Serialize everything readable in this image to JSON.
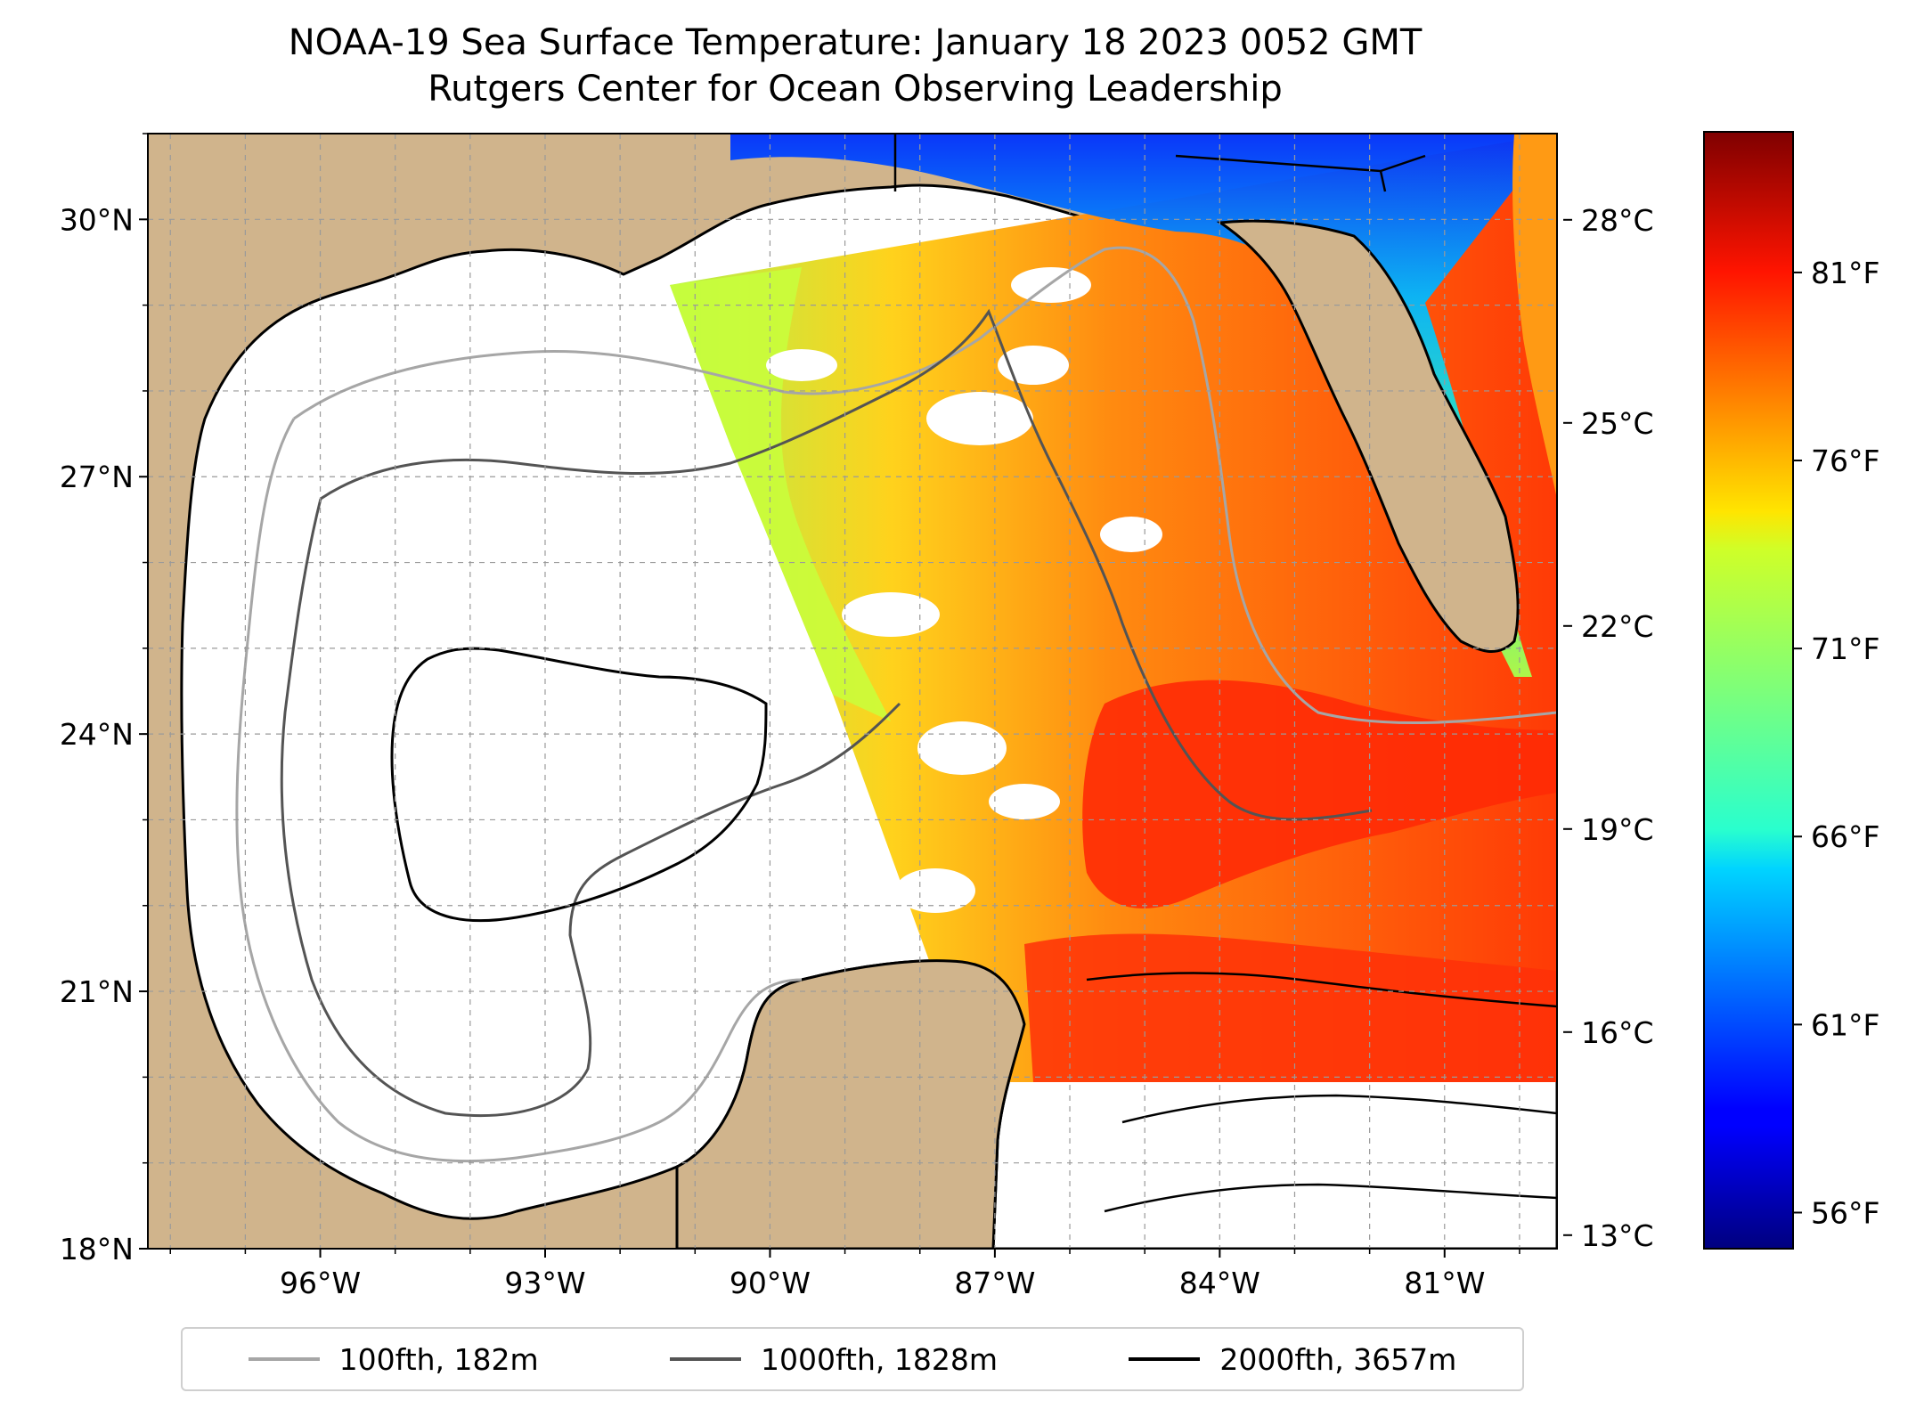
{
  "title": {
    "line1": "NOAA-19 Sea Surface Temperature: January 18 2023 0052 GMT",
    "line2": "Rutgers Center for Ocean Observing Leadership"
  },
  "map": {
    "extent": {
      "lon_min": -98.3,
      "lon_max": -79.5,
      "lat_min": 18.0,
      "lat_max": 31.0
    },
    "lat_ticks": [
      {
        "value": 30,
        "label": "30°N"
      },
      {
        "value": 27,
        "label": "27°N"
      },
      {
        "value": 24,
        "label": "24°N"
      },
      {
        "value": 21,
        "label": "21°N"
      },
      {
        "value": 18,
        "label": "18°N"
      }
    ],
    "lon_ticks": [
      {
        "value": -96,
        "label": "96°W"
      },
      {
        "value": -93,
        "label": "93°W"
      },
      {
        "value": -90,
        "label": "90°W"
      },
      {
        "value": -87,
        "label": "87°W"
      },
      {
        "value": -84,
        "label": "84°W"
      },
      {
        "value": -81,
        "label": "81°W"
      }
    ],
    "gridlines": true,
    "land_color": "#d0b48c",
    "no_data_color": "#ffffff"
  },
  "colorbar": {
    "colormap": "jet",
    "celsius_range": [
      12.8,
      29.3
    ],
    "celsius_ticks": [
      {
        "value": 28,
        "label": "28°C"
      },
      {
        "value": 25,
        "label": "25°C"
      },
      {
        "value": 22,
        "label": "22°C"
      },
      {
        "value": 19,
        "label": "19°C"
      },
      {
        "value": 16,
        "label": "16°C"
      },
      {
        "value": 13,
        "label": "13°C"
      }
    ],
    "fahrenheit_ticks": [
      {
        "value": 81,
        "label": "81°F"
      },
      {
        "value": 76,
        "label": "76°F"
      },
      {
        "value": 71,
        "label": "71°F"
      },
      {
        "value": 66,
        "label": "66°F"
      },
      {
        "value": 61,
        "label": "61°F"
      },
      {
        "value": 56,
        "label": "56°F"
      }
    ]
  },
  "legend": {
    "placement": "bottom",
    "items": [
      {
        "label": "100fth, 182m",
        "color": "#a6a6a6"
      },
      {
        "label": "1000fth, 1828m",
        "color": "#545454"
      },
      {
        "label": "2000fth, 3657m",
        "color": "#000000"
      }
    ]
  }
}
